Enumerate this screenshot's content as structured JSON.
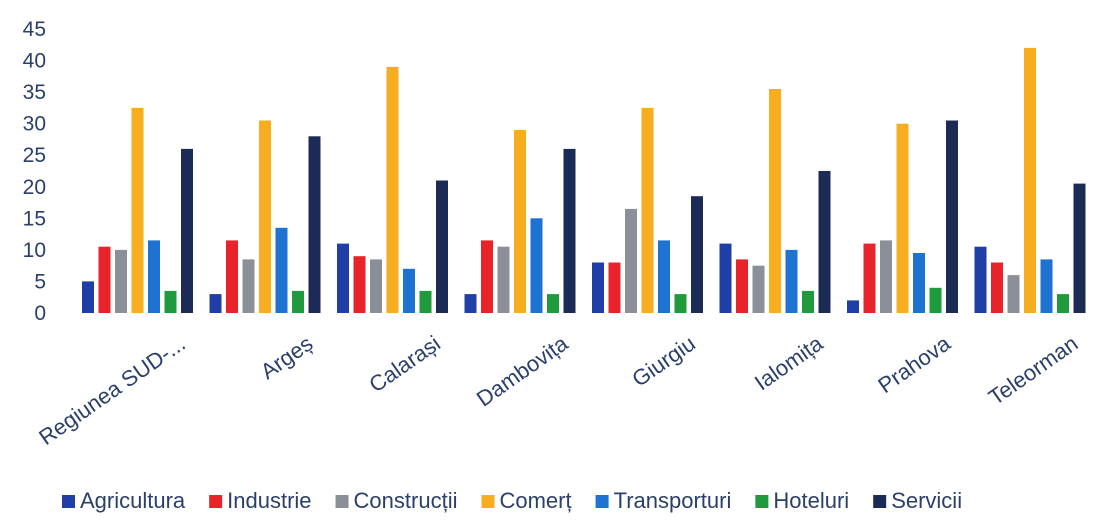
{
  "chart_data": {
    "type": "bar",
    "categories": [
      "Regiunea SUD-...",
      "Argeș",
      "Calarași",
      "Dambovița",
      "Giurgiu",
      "Ialomița",
      "Prahova",
      "Teleorman"
    ],
    "series": [
      {
        "name": "Agricultura",
        "color": "#1f3fa6",
        "values": [
          5.0,
          3.0,
          11.0,
          3.0,
          8.0,
          11.0,
          2.0,
          10.5
        ]
      },
      {
        "name": "Industrie",
        "color": "#e8232a",
        "values": [
          10.5,
          11.5,
          9.0,
          11.5,
          8.0,
          8.5,
          11.0,
          8.0
        ]
      },
      {
        "name": "Construcții",
        "color": "#8a8f98",
        "values": [
          10.0,
          8.5,
          8.5,
          10.5,
          16.5,
          7.5,
          11.5,
          6.0
        ]
      },
      {
        "name": "Comerț",
        "color": "#f6ad1e",
        "values": [
          32.5,
          30.5,
          39.0,
          29.0,
          32.5,
          35.5,
          30.0,
          42.0
        ]
      },
      {
        "name": "Transporturi",
        "color": "#1e73d2",
        "values": [
          11.5,
          13.5,
          7.0,
          15.0,
          11.5,
          10.0,
          9.5,
          8.5
        ]
      },
      {
        "name": "Hoteluri",
        "color": "#1f9a3c",
        "values": [
          3.5,
          3.5,
          3.5,
          3.0,
          3.0,
          3.5,
          4.0,
          3.0
        ]
      },
      {
        "name": "Servicii",
        "color": "#1c2a56",
        "values": [
          26.0,
          28.0,
          21.0,
          26.0,
          18.5,
          22.5,
          30.5,
          20.5
        ]
      }
    ],
    "yticks": [
      "0",
      "5",
      "10",
      "15",
      "20",
      "25",
      "30",
      "35",
      "40",
      "45"
    ],
    "ylim": [
      0,
      45
    ],
    "grid": false,
    "legend": "bottom",
    "title": "",
    "xlabel": "",
    "ylabel": ""
  }
}
